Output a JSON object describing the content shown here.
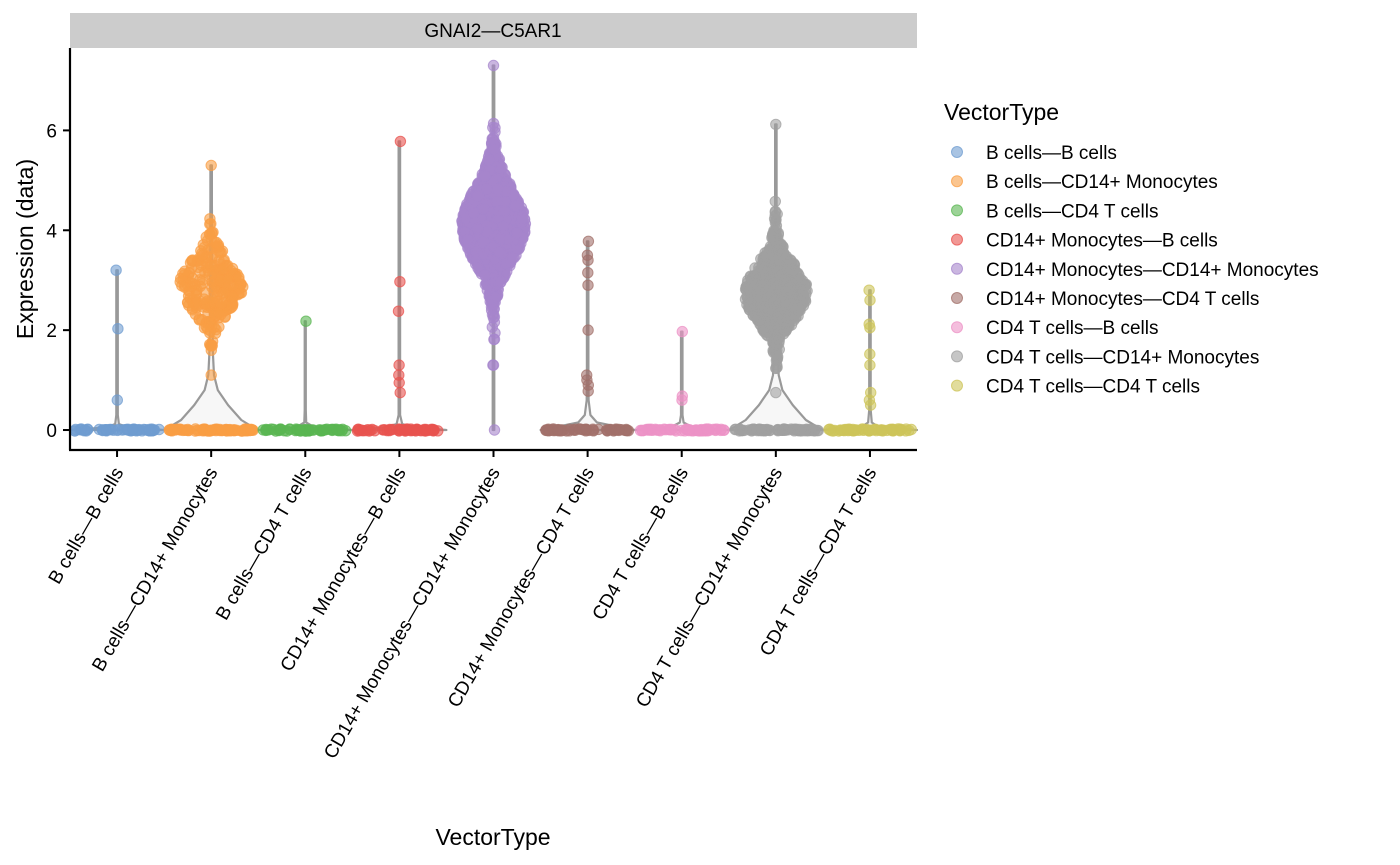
{
  "chart_data": {
    "type": "violin",
    "facet_title": "GNAI2—C5AR1",
    "xlabel": "VectorType",
    "ylabel": "Expression (data)",
    "ylim": [
      -0.4,
      7.65
    ],
    "y_ticks": [
      0,
      2,
      4,
      6
    ],
    "legend": {
      "title": "VectorType",
      "position": "right"
    },
    "categories": [
      "B cells—B cells",
      "B cells—CD14+ Monocytes",
      "B cells—CD4 T cells",
      "CD14+ Monocytes—B cells",
      "CD14+ Monocytes—CD14+ Monocytes",
      "CD14+ Monocytes—CD4 T cells",
      "CD4 T cells—B cells",
      "CD4 T cells—CD14+ Monocytes",
      "CD4 T cells—CD4 T cells"
    ],
    "series": [
      {
        "name": "B cells—B cells",
        "color": "#6f9cd0",
        "zero_count": 60,
        "points": [
          0.6,
          2.03,
          3.2
        ],
        "violin": {
          "y": [
            0,
            0.05,
            0.12,
            0.3,
            0.6,
            1.2,
            2.0,
            3.2
          ],
          "w": [
            0.5,
            0.12,
            0.02,
            0.008,
            0.008,
            0.008,
            0.008,
            0.008
          ]
        }
      },
      {
        "name": "B cells—CD14+ Monocytes",
        "color": "#f99e44",
        "zero_count": 80,
        "dist": {
          "mean": 2.9,
          "sd": 0.5,
          "n": 260,
          "min": 1.1,
          "max": 5.3
        },
        "violin": {
          "y": [
            0,
            0.05,
            0.2,
            0.5,
            0.8,
            1.1,
            1.5,
            2.0,
            2.5,
            3.0,
            3.5,
            4.0,
            4.5,
            5.0,
            5.3
          ],
          "w": [
            0.5,
            0.45,
            0.32,
            0.18,
            0.07,
            0.03,
            0.02,
            0.015,
            0.012,
            0.012,
            0.01,
            0.01,
            0.008,
            0.008,
            0.008
          ]
        }
      },
      {
        "name": "B cells—CD4 T cells",
        "color": "#5ab552",
        "zero_count": 60,
        "points": [
          2.18
        ],
        "violin": {
          "y": [
            0,
            0.05,
            0.15,
            0.4,
            2.18
          ],
          "w": [
            0.5,
            0.1,
            0.01,
            0.006,
            0.006
          ]
        }
      },
      {
        "name": "CD14+ Monocytes—B cells",
        "color": "#e8534f",
        "zero_count": 60,
        "points": [
          0.75,
          0.95,
          1.1,
          1.3,
          2.38,
          2.97,
          5.78
        ],
        "violin": {
          "y": [
            0,
            0.05,
            0.12,
            0.3,
            0.6,
            1.2,
            2.0,
            3.0,
            4.5,
            5.78
          ],
          "w": [
            0.5,
            0.16,
            0.03,
            0.008,
            0.008,
            0.008,
            0.008,
            0.008,
            0.008,
            0.008
          ]
        }
      },
      {
        "name": "CD14+ Monocytes—CD14+ Monocytes",
        "color": "#a685cc",
        "zero_count": 0,
        "dist": {
          "mean": 4.1,
          "sd": 0.72,
          "n": 1400,
          "min": 1.3,
          "max": 7.3
        },
        "extra_points": [
          0.0,
          1.3
        ],
        "violin": {
          "y": [
            0,
            1.3,
            2.0,
            7.3
          ],
          "w": [
            0.008,
            0.008,
            0.008,
            0.008
          ]
        }
      },
      {
        "name": "CD14+ Monocytes—CD4 T cells",
        "color": "#a2706a",
        "zero_count": 60,
        "points": [
          0.78,
          0.9,
          1.0,
          1.1,
          2.0,
          2.9,
          3.15,
          3.4,
          3.5,
          3.78
        ],
        "violin": {
          "y": [
            0,
            0.05,
            0.15,
            0.3,
            0.6,
            1.2,
            2.0,
            3.0,
            3.78
          ],
          "w": [
            0.5,
            0.36,
            0.1,
            0.03,
            0.01,
            0.008,
            0.008,
            0.008,
            0.008
          ]
        }
      },
      {
        "name": "CD4 T cells—B cells",
        "color": "#ec92c6",
        "zero_count": 60,
        "points": [
          0.6,
          0.68,
          1.97
        ],
        "violin": {
          "y": [
            0,
            0.05,
            0.15,
            0.3,
            0.6,
            1.97
          ],
          "w": [
            0.5,
            0.12,
            0.02,
            0.008,
            0.008,
            0.008
          ]
        }
      },
      {
        "name": "CD4 T cells—CD14+ Monocytes",
        "color": "#a0a0a0",
        "zero_count": 80,
        "dist": {
          "mean": 2.75,
          "sd": 0.55,
          "n": 700,
          "min": 0.75,
          "max": 6.12
        },
        "violin": {
          "y": [
            0,
            0.05,
            0.2,
            0.5,
            0.8,
            1.1,
            1.5,
            2.0,
            2.5,
            3.0,
            3.5,
            4.0,
            4.5,
            5.0,
            5.5,
            6.12
          ],
          "w": [
            0.5,
            0.45,
            0.32,
            0.18,
            0.07,
            0.03,
            0.02,
            0.015,
            0.012,
            0.012,
            0.01,
            0.01,
            0.008,
            0.008,
            0.008,
            0.008
          ]
        }
      },
      {
        "name": "CD4 T cells—CD4 T cells",
        "color": "#cdc45a",
        "zero_count": 60,
        "points": [
          0.5,
          0.6,
          0.75,
          1.3,
          1.52,
          2.05,
          2.12,
          2.6,
          2.8
        ],
        "violin": {
          "y": [
            0,
            0.05,
            0.15,
            0.4,
            1.0,
            2.0,
            2.8
          ],
          "w": [
            0.5,
            0.1,
            0.02,
            0.008,
            0.008,
            0.008,
            0.008
          ]
        }
      }
    ]
  }
}
